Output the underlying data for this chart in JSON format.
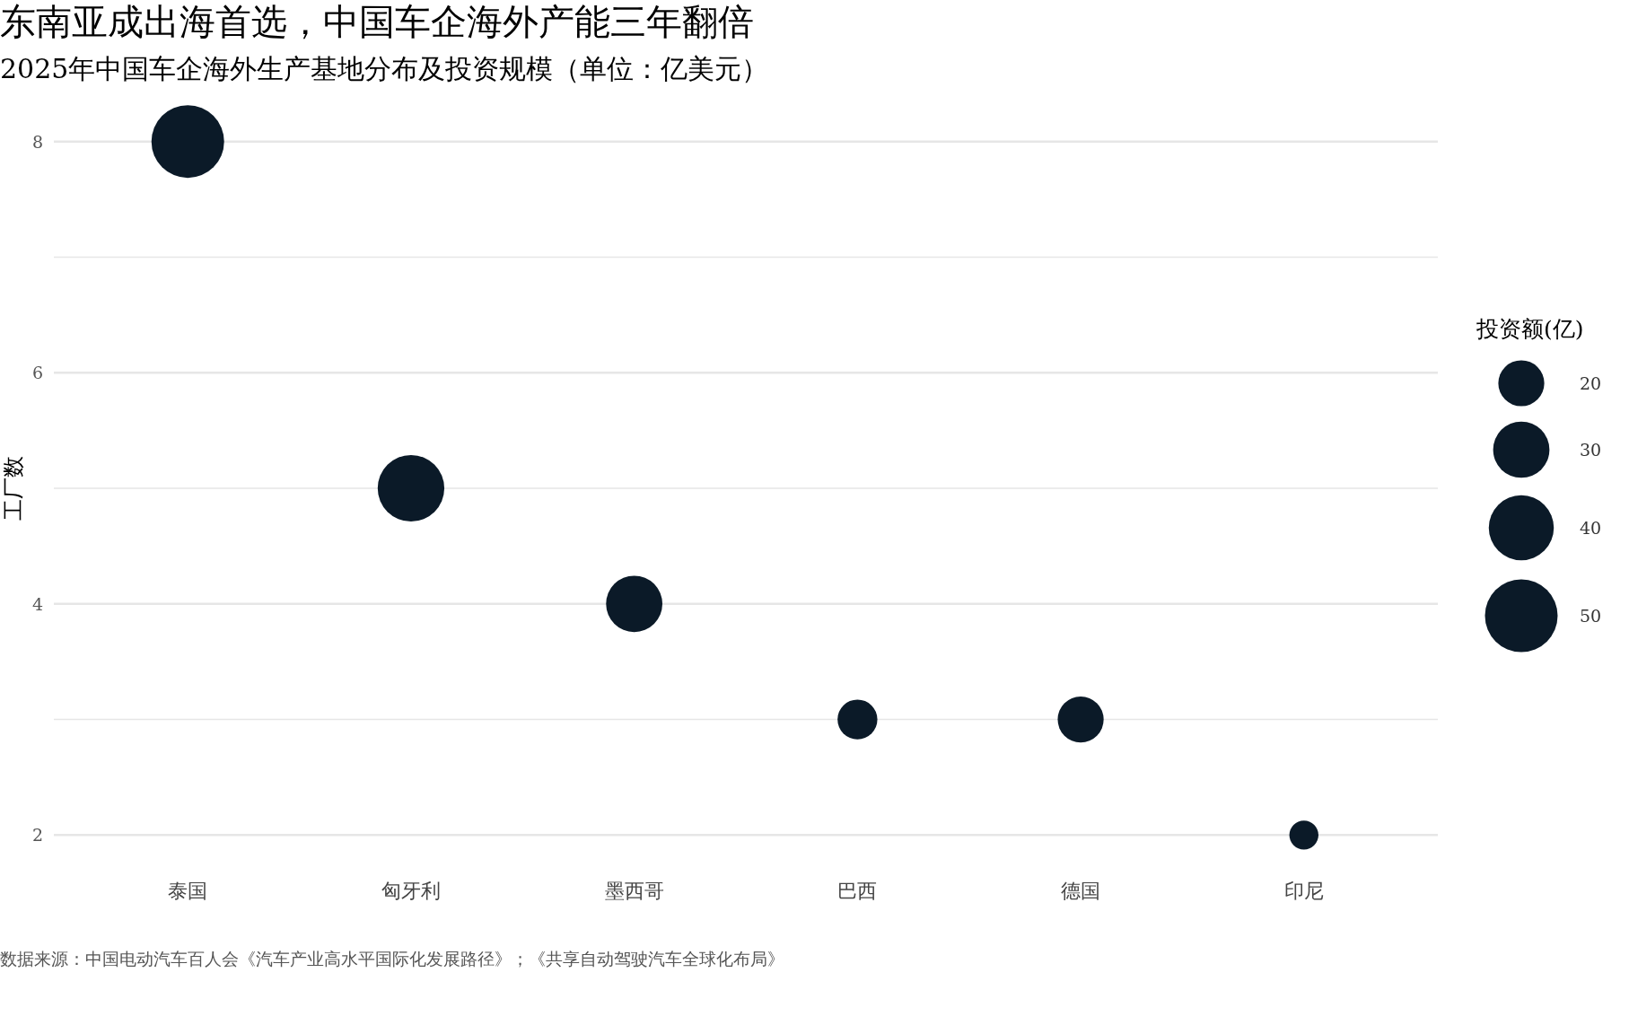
{
  "chart_data": {
    "type": "bubble",
    "title": "东南亚成出海首选，中国车企海外产能三年翻倍",
    "subtitle": "2025年中国车企海外生产基地分布及投资规模（单位：亿美元）",
    "ylabel": "工厂数",
    "legend_title": "投资额(亿)",
    "categories": [
      "泰国",
      "匈牙利",
      "墨西哥",
      "巴西",
      "德国",
      "印尼"
    ],
    "values": [
      8,
      5,
      4,
      3,
      3,
      2
    ],
    "sizes": [
      50,
      42,
      30,
      15,
      20,
      8
    ],
    "size_legend": [
      20,
      30,
      40,
      50
    ],
    "color": "#0b1a28",
    "ylim": [
      2,
      8
    ],
    "yticks": [
      2,
      {
        "value": 3,
        "label": null
      },
      4,
      {
        "value": 5,
        "label": null
      },
      6,
      {
        "value": 7,
        "label": null
      },
      8
    ],
    "grid": "y",
    "annotations": [
      "数据来源：中国电动汽车百人会《汽车产业高水平国际化发展路径》；《共享自动驾驶汽车全球化布局》"
    ]
  }
}
